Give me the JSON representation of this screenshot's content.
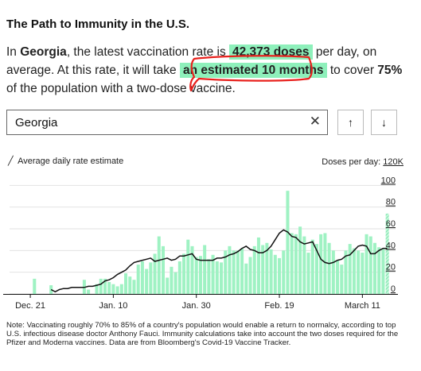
{
  "header": {
    "title": "The Path to Immunity in the U.S.",
    "lede": {
      "prefix": "In ",
      "state": "Georgia",
      "part1": ", the latest vaccination rate is ",
      "doses": "42,373 doses",
      "part2": " per day, on average. At this rate, it will take ",
      "estimate": "an estimated 10 months",
      "part3": " to cover ",
      "percent": "75%",
      "part4": " of the population with a two-dose vaccine."
    }
  },
  "search": {
    "value": "Georgia",
    "clear_glyph": "✕"
  },
  "nav": {
    "up_glyph": "↑",
    "down_glyph": "↓"
  },
  "legend": {
    "line_label": "Average daily rate estimate"
  },
  "colors": {
    "bar": "#9ff2c3",
    "bar_hatch": "#64dfa0",
    "line": "#111111",
    "highlight": "#8ef0bb",
    "annotation": "#e8211d"
  },
  "chart_data": {
    "type": "bar",
    "ylabel_prefix": "Doses per day: ",
    "ylabel_unit": "120K",
    "ylim": [
      0,
      120000
    ],
    "y_ticks": [
      0,
      20,
      40,
      60,
      80,
      100
    ],
    "x_range": [
      "2020-12-16",
      "2021-03-14"
    ],
    "x_ticks": [
      {
        "date": "2020-12-21",
        "label": "Dec. 21"
      },
      {
        "date": "2021-01-10",
        "label": "Jan. 10"
      },
      {
        "date": "2021-01-30",
        "label": "Jan. 30"
      },
      {
        "date": "2021-02-19",
        "label": "Feb. 19"
      },
      {
        "date": "2021-03-11",
        "label": "March 11"
      }
    ],
    "bars": {
      "start": "2020-12-16",
      "values": [
        0,
        0,
        0,
        0,
        0,
        0,
        14000,
        0,
        0,
        0,
        8000,
        0,
        0,
        0,
        0,
        0,
        0,
        0,
        13000,
        4000,
        0,
        9000,
        14000,
        14000,
        11000,
        9000,
        7000,
        9000,
        19000,
        16000,
        13000,
        27000,
        30000,
        23000,
        29000,
        37000,
        53000,
        44000,
        15000,
        25000,
        20000,
        30000,
        37000,
        50000,
        44000,
        34000,
        35000,
        45000,
        32000,
        36000,
        30000,
        29000,
        40000,
        44000,
        40000,
        40000,
        42000,
        28000,
        34000,
        44000,
        52000,
        45000,
        47000,
        41000,
        36000,
        33000,
        40000,
        95000,
        56000,
        55000,
        62000,
        53000,
        38000,
        50000,
        46000,
        55000,
        56000,
        47000,
        40000,
        31000,
        27000,
        40000,
        46000,
        42000,
        40000,
        38000,
        55000,
        53000,
        47000,
        43000,
        42000,
        74000
      ],
      "last_is_partial": true
    },
    "line": {
      "start": "2020-12-26",
      "values": [
        4000,
        2000,
        4000,
        5000,
        5000,
        6000,
        6000,
        6000,
        6000,
        7000,
        7000,
        8000,
        9000,
        12000,
        13000,
        15000,
        18000,
        20000,
        22000,
        26000,
        29000,
        30000,
        31000,
        32000,
        33000,
        30000,
        31000,
        32000,
        33000,
        31000,
        32000,
        35000,
        35000,
        36000,
        37000,
        32000,
        31000,
        31000,
        31000,
        31000,
        33000,
        33000,
        34000,
        36000,
        37000,
        39000,
        42000,
        44000,
        41000,
        40000,
        38000,
        38000,
        40000,
        44000,
        50000,
        56000,
        59000,
        57000,
        53000,
        52000,
        48000,
        46000,
        47000,
        48000,
        40000,
        32000,
        29000,
        28000,
        29000,
        31000,
        32000,
        35000,
        36000,
        40000,
        44000,
        45000,
        44000,
        37000,
        37000,
        40000,
        42000,
        42000
      ]
    }
  },
  "note": "Note: Vaccinating roughly 70% to 85% of a country's population would enable a return to normalcy, according to top U.S. infectious disease doctor Anthony Fauci. Immunity calculations take into account the two doses required for the Pfizer and Moderna vaccines. Data are from Bloomberg's Covid-19 Vaccine Tracker."
}
